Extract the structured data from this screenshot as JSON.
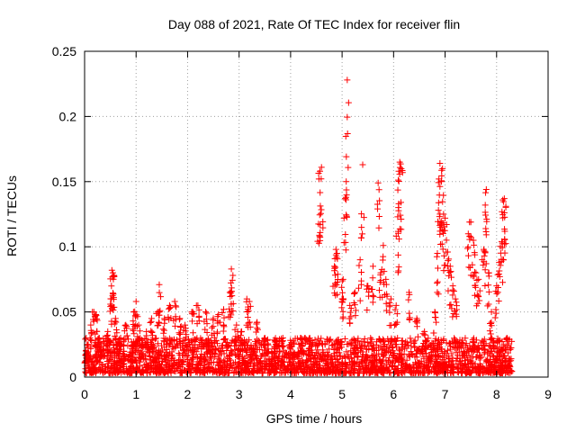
{
  "chart_data": {
    "type": "scatter",
    "title": "Day 088 of 2021, Rate Of TEC Index for receiver flin",
    "xlabel": "GPS time / hours",
    "ylabel": "ROTI / TECUs",
    "xlim": [
      0,
      9
    ],
    "ylim": [
      0,
      0.25
    ],
    "x_ticks": [
      0,
      1,
      2,
      3,
      4,
      5,
      6,
      7,
      8,
      9
    ],
    "x_tick_labels": [
      "0",
      "1",
      "2",
      "3",
      "4",
      "5",
      "6",
      "7",
      "8",
      "9"
    ],
    "y_ticks": [
      0,
      0.05,
      0.1,
      0.15,
      0.2,
      0.25
    ],
    "y_tick_labels": [
      "0",
      "0.05",
      "0.1",
      "0.15",
      "0.2",
      "0.25"
    ],
    "grid": true,
    "marker": "+",
    "color": "#ff0000",
    "series": [
      {
        "name": "ROTI",
        "points": [
          [
            0.05,
            0.025
          ],
          [
            0.12,
            0.04
          ],
          [
            0.18,
            0.05
          ],
          [
            0.22,
            0.048
          ],
          [
            0.28,
            0.03
          ],
          [
            0.35,
            0.02
          ],
          [
            0.45,
            0.035
          ],
          [
            0.52,
            0.06
          ],
          [
            0.53,
            0.082
          ],
          [
            0.55,
            0.08
          ],
          [
            0.57,
            0.078
          ],
          [
            0.6,
            0.045
          ],
          [
            0.7,
            0.03
          ],
          [
            0.8,
            0.04
          ],
          [
            0.95,
            0.05
          ],
          [
            1.0,
            0.058
          ],
          [
            1.05,
            0.04
          ],
          [
            1.2,
            0.035
          ],
          [
            1.3,
            0.045
          ],
          [
            1.42,
            0.05
          ],
          [
            1.45,
            0.071
          ],
          [
            1.55,
            0.045
          ],
          [
            1.65,
            0.055
          ],
          [
            1.75,
            0.058
          ],
          [
            1.85,
            0.045
          ],
          [
            1.95,
            0.04
          ],
          [
            2.1,
            0.05
          ],
          [
            2.2,
            0.055
          ],
          [
            2.35,
            0.05
          ],
          [
            2.5,
            0.045
          ],
          [
            2.6,
            0.048
          ],
          [
            2.7,
            0.052
          ],
          [
            2.82,
            0.065
          ],
          [
            2.85,
            0.083
          ],
          [
            2.88,
            0.078
          ],
          [
            2.95,
            0.04
          ],
          [
            3.05,
            0.035
          ],
          [
            3.15,
            0.06
          ],
          [
            3.2,
            0.058
          ],
          [
            3.35,
            0.042
          ],
          [
            3.5,
            0.03
          ],
          [
            3.7,
            0.028
          ],
          [
            3.85,
            0.03
          ],
          [
            4.0,
            0.025
          ],
          [
            4.2,
            0.03
          ],
          [
            4.4,
            0.028
          ],
          [
            4.55,
            0.152
          ],
          [
            4.57,
            0.158
          ],
          [
            4.6,
            0.161
          ],
          [
            4.85,
            0.085
          ],
          [
            4.88,
            0.098
          ],
          [
            4.9,
            0.095
          ],
          [
            5.0,
            0.06
          ],
          [
            5.02,
            0.075
          ],
          [
            5.06,
            0.137
          ],
          [
            5.08,
            0.15
          ],
          [
            5.1,
            0.228
          ],
          [
            5.15,
            0.055
          ],
          [
            5.25,
            0.065
          ],
          [
            5.35,
            0.09
          ],
          [
            5.4,
            0.163
          ],
          [
            5.5,
            0.07
          ],
          [
            5.6,
            0.085
          ],
          [
            5.7,
            0.149
          ],
          [
            5.75,
            0.08
          ],
          [
            5.8,
            0.101
          ],
          [
            5.85,
            0.075
          ],
          [
            5.95,
            0.06
          ],
          [
            6.05,
            0.055
          ],
          [
            6.08,
            0.123
          ],
          [
            6.1,
            0.158
          ],
          [
            6.12,
            0.165
          ],
          [
            6.15,
            0.16
          ],
          [
            6.3,
            0.065
          ],
          [
            6.45,
            0.045
          ],
          [
            6.6,
            0.035
          ],
          [
            6.8,
            0.05
          ],
          [
            6.85,
            0.095
          ],
          [
            6.88,
            0.152
          ],
          [
            6.9,
            0.164
          ],
          [
            6.93,
            0.15
          ],
          [
            6.95,
            0.16
          ],
          [
            6.97,
            0.125
          ],
          [
            7.0,
            0.122
          ],
          [
            7.05,
            0.096
          ],
          [
            7.1,
            0.085
          ],
          [
            7.15,
            0.07
          ],
          [
            7.2,
            0.06
          ],
          [
            7.45,
            0.11
          ],
          [
            7.5,
            0.119
          ],
          [
            7.55,
            0.105
          ],
          [
            7.6,
            0.08
          ],
          [
            7.65,
            0.075
          ],
          [
            7.75,
            0.098
          ],
          [
            7.78,
            0.132
          ],
          [
            7.8,
            0.144
          ],
          [
            7.85,
            0.08
          ],
          [
            7.9,
            0.05
          ],
          [
            8.0,
            0.07
          ],
          [
            8.05,
            0.088
          ],
          [
            8.1,
            0.104
          ],
          [
            8.12,
            0.136
          ],
          [
            8.15,
            0.137
          ],
          [
            8.18,
            0.131
          ],
          [
            8.2,
            0.03
          ],
          [
            8.25,
            0.012
          ]
        ],
        "baseline_band": {
          "x_start": 0.0,
          "x_end": 8.3,
          "min": 0.003,
          "max": 0.03
        }
      }
    ]
  }
}
